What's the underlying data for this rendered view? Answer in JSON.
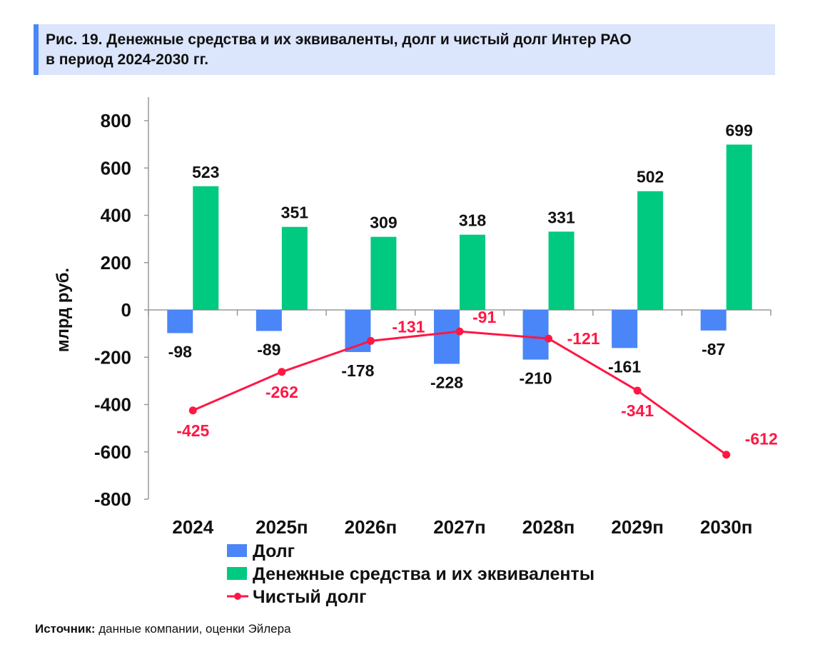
{
  "title": {
    "line1": "Рис. 19. Денежные средства и их эквиваленты, долг и чистый долг Интер РАО",
    "line2": "в период 2024-2030 гг."
  },
  "source": {
    "label": "Источник:",
    "text": " данные компании, оценки Эйлера"
  },
  "chart_data": {
    "type": "bar",
    "categories": [
      "2024",
      "2025п",
      "2026п",
      "2027п",
      "2028п",
      "2029п",
      "2030п"
    ],
    "ylabel": "млрд руб.",
    "ylim": [
      -800,
      800
    ],
    "yticks": [
      800,
      600,
      400,
      200,
      0,
      -200,
      -400,
      -600,
      -800
    ],
    "grid": false,
    "legend_position": "bottom",
    "series": [
      {
        "name": "Долг",
        "kind": "bar",
        "color": "#4a86f7",
        "values": [
          -98,
          -89,
          -178,
          -228,
          -210,
          -161,
          -87
        ]
      },
      {
        "name": "Денежные средства и их эквиваленты",
        "kind": "bar",
        "color": "#00c980",
        "values": [
          523,
          351,
          309,
          318,
          331,
          502,
          699
        ]
      },
      {
        "name": "Чистый долг",
        "kind": "line",
        "color": "#ff1744",
        "values": [
          -425,
          -262,
          -131,
          -91,
          -121,
          -341,
          -612
        ]
      }
    ]
  }
}
